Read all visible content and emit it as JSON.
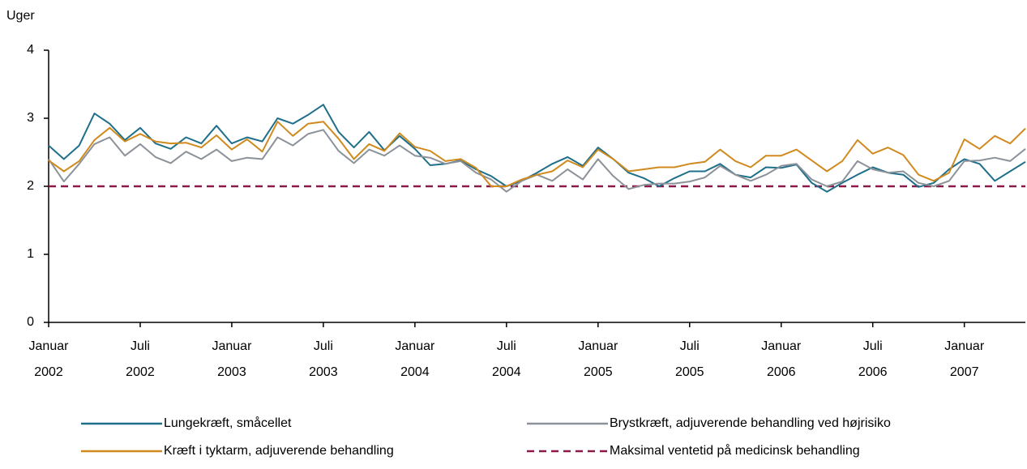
{
  "chart_data": {
    "type": "line",
    "y_label": "Uger",
    "categories": [
      "Januar 2002",
      null,
      null,
      null,
      null,
      null,
      "Juli 2002",
      null,
      null,
      null,
      null,
      null,
      "Januar 2003",
      null,
      null,
      null,
      null,
      null,
      "Juli 2003",
      null,
      null,
      null,
      null,
      null,
      "Januar 2004",
      null,
      null,
      null,
      null,
      null,
      "Juli 2004",
      null,
      null,
      null,
      null,
      null,
      "Januar 2005",
      null,
      null,
      null,
      null,
      null,
      "Juli 2005",
      null,
      null,
      null,
      null,
      null,
      "Januar 2006",
      null,
      null,
      null,
      null,
      null,
      "Juli 2006",
      null,
      null,
      null,
      null,
      null,
      "Januar 2007",
      null,
      null,
      null,
      null
    ],
    "series": [
      {
        "name": "Lungekræft, småcellet",
        "color": "#1f6f8b",
        "values": [
          2.6,
          2.4,
          2.6,
          3.07,
          2.92,
          2.68,
          2.86,
          2.63,
          2.55,
          2.72,
          2.63,
          2.89,
          2.63,
          2.72,
          2.66,
          3.0,
          2.92,
          3.05,
          3.2,
          2.8,
          2.57,
          2.8,
          2.53,
          2.74,
          2.55,
          2.31,
          2.33,
          2.38,
          2.25,
          2.15,
          2.0,
          2.08,
          2.2,
          2.33,
          2.43,
          2.3,
          2.57,
          2.4,
          2.2,
          2.12,
          2.0,
          2.12,
          2.22,
          2.22,
          2.33,
          2.17,
          2.13,
          2.28,
          2.27,
          2.32,
          2.05,
          1.92,
          2.05,
          2.17,
          2.28,
          2.2,
          2.17,
          1.99,
          2.05,
          2.25,
          2.4,
          2.33,
          2.08,
          2.22,
          2.36
        ]
      },
      {
        "name": "Brystkræft, adjuverende behandling ved højrisiko",
        "color": "#8c9299",
        "values": [
          2.4,
          2.07,
          2.33,
          2.62,
          2.72,
          2.45,
          2.62,
          2.43,
          2.34,
          2.51,
          2.4,
          2.54,
          2.37,
          2.42,
          2.4,
          2.72,
          2.6,
          2.77,
          2.83,
          2.52,
          2.34,
          2.54,
          2.45,
          2.6,
          2.45,
          2.42,
          2.33,
          2.37,
          2.2,
          2.1,
          1.92,
          2.08,
          2.17,
          2.08,
          2.25,
          2.1,
          2.4,
          2.15,
          1.96,
          2.02,
          2.04,
          2.04,
          2.07,
          2.13,
          2.3,
          2.17,
          2.08,
          2.17,
          2.3,
          2.33,
          2.1,
          2.0,
          2.07,
          2.37,
          2.25,
          2.2,
          2.22,
          2.05,
          2.0,
          2.08,
          2.37,
          2.38,
          2.42,
          2.37,
          2.55
        ]
      },
      {
        "name": "Kræft i tyktarm, adjuverende behandling",
        "color": "#d08a1e",
        "values": [
          2.38,
          2.22,
          2.37,
          2.68,
          2.86,
          2.66,
          2.77,
          2.66,
          2.63,
          2.64,
          2.57,
          2.75,
          2.54,
          2.69,
          2.51,
          2.95,
          2.74,
          2.92,
          2.95,
          2.7,
          2.4,
          2.62,
          2.52,
          2.78,
          2.58,
          2.52,
          2.37,
          2.4,
          2.27,
          2.0,
          2.0,
          2.1,
          2.17,
          2.22,
          2.38,
          2.28,
          2.54,
          2.4,
          2.22,
          2.25,
          2.28,
          2.28,
          2.33,
          2.36,
          2.54,
          2.37,
          2.28,
          2.45,
          2.45,
          2.54,
          2.38,
          2.22,
          2.37,
          2.68,
          2.48,
          2.57,
          2.46,
          2.17,
          2.08,
          2.2,
          2.69,
          2.55,
          2.74,
          2.63,
          2.85
        ]
      }
    ],
    "reference_line": {
      "name": "Maksimal ventetid på medicinsk behandling",
      "value": 2,
      "color": "#8b1a4b",
      "dashed": true
    },
    "ylim": [
      0,
      4
    ],
    "yticks": [
      0,
      1,
      2,
      3,
      4
    ]
  }
}
